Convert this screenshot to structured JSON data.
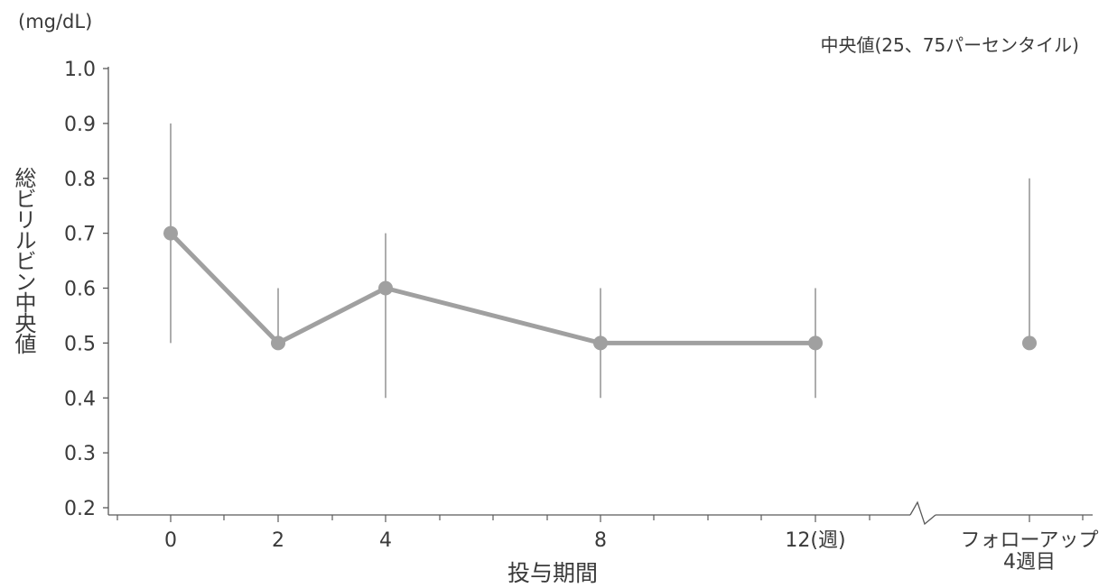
{
  "chart_data": {
    "type": "line",
    "unit_label": "(mg/dL)",
    "legend": "中央値(25、75パーセンタイル)",
    "ylabel": "総ビリルビン中央値",
    "xlabel": "投与期間",
    "ylim": [
      0.2,
      1.0
    ],
    "yticks": [
      "0.2",
      "0.3",
      "0.4",
      "0.5",
      "0.6",
      "0.7",
      "0.8",
      "0.9",
      "1.0"
    ],
    "yvalues": [
      0.2,
      0.3,
      0.4,
      0.5,
      0.6,
      0.7,
      0.8,
      0.9,
      1.0
    ],
    "xticks": [
      "0",
      "2",
      "4",
      "8",
      "12(週)",
      "フォローアップ\n4週目"
    ],
    "series": [
      {
        "x": [
          "0",
          "2",
          "4",
          "8",
          "12"
        ],
        "median": [
          0.7,
          0.5,
          0.6,
          0.5,
          0.5
        ],
        "p25": [
          0.5,
          0.5,
          0.4,
          0.4,
          0.4
        ],
        "p75": [
          0.9,
          0.6,
          0.7,
          0.6,
          0.6
        ]
      },
      {
        "x": [
          "フォローアップ4週目"
        ],
        "median": [
          0.5
        ],
        "p25": [
          0.5
        ],
        "p75": [
          0.8
        ]
      }
    ],
    "axis_break": true,
    "colors": {
      "line": "#a0a0a0",
      "marker": "#a0a0a0",
      "errorbar": "#8a8a8a",
      "axis": "#5a5a5a"
    }
  }
}
